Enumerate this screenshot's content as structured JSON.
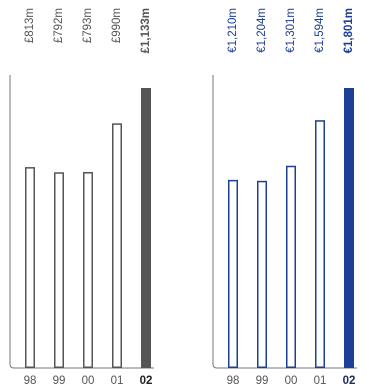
{
  "chart_data": [
    {
      "type": "bar",
      "categories": [
        "98",
        "99",
        "00",
        "01",
        "02"
      ],
      "values": [
        813,
        792,
        793,
        990,
        1133
      ],
      "value_labels": [
        "£813m",
        "£792m",
        "£793m",
        "£990m",
        "£1,133m"
      ],
      "highlight_index": 4,
      "colors": {
        "outline": "#555555",
        "highlight": "#555555",
        "axis": "#777777"
      }
    },
    {
      "type": "bar",
      "categories": [
        "98",
        "99",
        "00",
        "01",
        "02"
      ],
      "values": [
        1210,
        1204,
        1301,
        1594,
        1801
      ],
      "value_labels": [
        "€1,210m",
        "€1,204m",
        "€1,301m",
        "€1,594m",
        "€1,801m"
      ],
      "highlight_index": 4,
      "colors": {
        "outline": "#1e3f96",
        "highlight": "#1e3f96",
        "axis": "#777777"
      }
    }
  ]
}
